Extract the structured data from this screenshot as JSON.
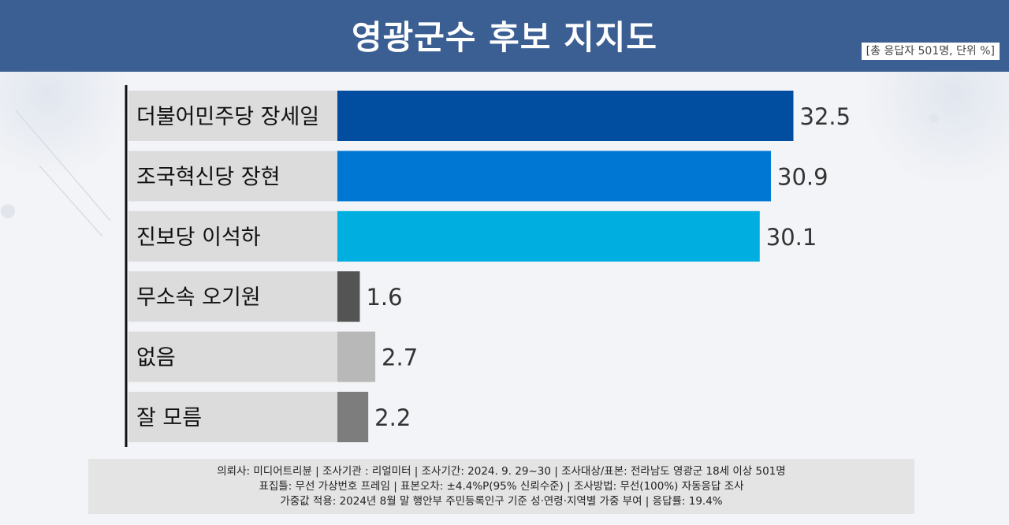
{
  "header": {
    "title": "영광군수 후보 지지도",
    "unit_note": "[총 응답자 501명, 단위 %]"
  },
  "chart_data": {
    "type": "bar",
    "orientation": "horizontal",
    "title": "영광군수 후보 지지도",
    "categories": [
      "더불어민주당 장세일",
      "조국혁신당 장현",
      "진보당 이석하",
      "무소속 오기원",
      "없음",
      "잘 모름"
    ],
    "values": [
      32.5,
      30.9,
      30.1,
      1.6,
      2.7,
      2.2
    ],
    "value_labels": [
      "32.5",
      "30.9",
      "30.1",
      "1.6",
      "2.7",
      "2.2"
    ],
    "bar_colors": [
      "#014ea1",
      "#0077d2",
      "#00aee0",
      "#545454",
      "#b8b8b8",
      "#7d7d7d"
    ],
    "label_bg_color": "#dcdcdc",
    "unit": "%",
    "xlim": [
      0,
      34
    ],
    "grid": false,
    "legend": "none"
  },
  "footer": {
    "lines": [
      "의뢰사: 미디어트리뷴 | 조사기관 : 리얼미터 | 조사기간: 2024. 9. 29~30 | 조사대상/표본: 전라남도 영광군 18세 이상 501명",
      "표집틀: 무선 가상번호 프레임 | 표본오차: ±4.4%P(95% 신뢰수준) | 조사방법: 무선(100%) 자동응답 조사",
      "가중값 적용: 2024년 8월 말 행안부 주민등록인구 기준 성·연령·지역별 가중 부여 | 응답률: 19.4%"
    ]
  }
}
